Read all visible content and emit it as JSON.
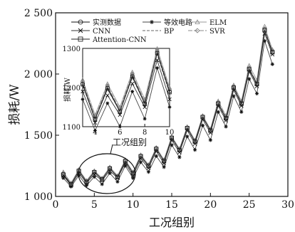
{
  "chart_data": {
    "type": "line",
    "xlabel": "工况组别",
    "ylabel": "损耗/W",
    "xlim": [
      0,
      30
    ],
    "ylim": [
      1000,
      2500
    ],
    "x_ticks": [
      "0",
      "5",
      "10",
      "15",
      "20",
      "25",
      "30"
    ],
    "y_ticks": [
      "1 000",
      "1 500",
      "2 000",
      "2 500"
    ],
    "x": [
      1,
      2,
      3,
      4,
      5,
      6,
      7,
      8,
      9,
      10,
      11,
      12,
      13,
      14,
      15,
      16,
      17,
      18,
      19,
      20,
      21,
      22,
      23,
      24,
      25,
      26,
      27,
      28
    ],
    "series": [
      {
        "name": "实测数据",
        "marker": "circle",
        "values": [
          1180,
          1100,
          1210,
          1120,
          1200,
          1140,
          1230,
          1160,
          1290,
          1190,
          1330,
          1250,
          1390,
          1290,
          1480,
          1380,
          1560,
          1450,
          1650,
          1540,
          1760,
          1640,
          1890,
          1760,
          2040,
          1920,
          2360,
          2180
        ]
      },
      {
        "name": "等效电路",
        "marker": "star",
        "values": [
          1150,
          1080,
          1170,
          1090,
          1160,
          1100,
          1190,
          1120,
          1250,
          1150,
          1280,
          1200,
          1330,
          1240,
          1420,
          1320,
          1490,
          1380,
          1580,
          1460,
          1690,
          1570,
          1820,
          1690,
          1960,
          1840,
          2270,
          2080
        ]
      },
      {
        "name": "ELM",
        "marker": "triangle",
        "values": [
          1200,
          1110,
          1220,
          1130,
          1210,
          1150,
          1240,
          1170,
          1300,
          1200,
          1340,
          1260,
          1400,
          1300,
          1490,
          1390,
          1570,
          1460,
          1660,
          1550,
          1780,
          1660,
          1910,
          1780,
          2070,
          1950,
          2390,
          2200
        ]
      },
      {
        "name": "CNN",
        "marker": "x",
        "values": [
          1170,
          1090,
          1190,
          1110,
          1180,
          1130,
          1210,
          1150,
          1270,
          1170,
          1310,
          1230,
          1370,
          1270,
          1460,
          1360,
          1540,
          1430,
          1630,
          1520,
          1740,
          1620,
          1870,
          1740,
          2020,
          1900,
          2330,
          2160
        ]
      },
      {
        "name": "BP",
        "marker": "none",
        "values": [
          1185,
          1100,
          1205,
          1120,
          1195,
          1140,
          1225,
          1160,
          1285,
          1185,
          1325,
          1245,
          1385,
          1285,
          1475,
          1375,
          1555,
          1445,
          1645,
          1535,
          1755,
          1635,
          1885,
          1755,
          2035,
          1915,
          2350,
          2175
        ]
      },
      {
        "name": "SVR",
        "marker": "diamond",
        "values": [
          1190,
          1105,
          1215,
          1125,
          1205,
          1145,
          1235,
          1165,
          1295,
          1195,
          1335,
          1255,
          1395,
          1295,
          1485,
          1385,
          1565,
          1455,
          1655,
          1545,
          1770,
          1650,
          1900,
          1770,
          2050,
          1930,
          2370,
          2190
        ]
      },
      {
        "name": "Attention-CNN",
        "marker": "square",
        "values": [
          1178,
          1098,
          1208,
          1118,
          1198,
          1138,
          1228,
          1158,
          1288,
          1188,
          1328,
          1248,
          1388,
          1288,
          1478,
          1378,
          1558,
          1448,
          1648,
          1538,
          1758,
          1638,
          1888,
          1758,
          2038,
          1918,
          2358,
          2178
        ]
      }
    ],
    "legend": {
      "placement": "top-left"
    },
    "inset": {
      "xlim": [
        3,
        10
      ],
      "ylim": [
        1100,
        1300
      ],
      "x_ticks": [
        "4",
        "6",
        "8",
        "10"
      ],
      "y_ticks": [
        "1100",
        "1200",
        "1300"
      ],
      "ylabel": "损耗/W"
    },
    "annotation": "工况组别"
  }
}
